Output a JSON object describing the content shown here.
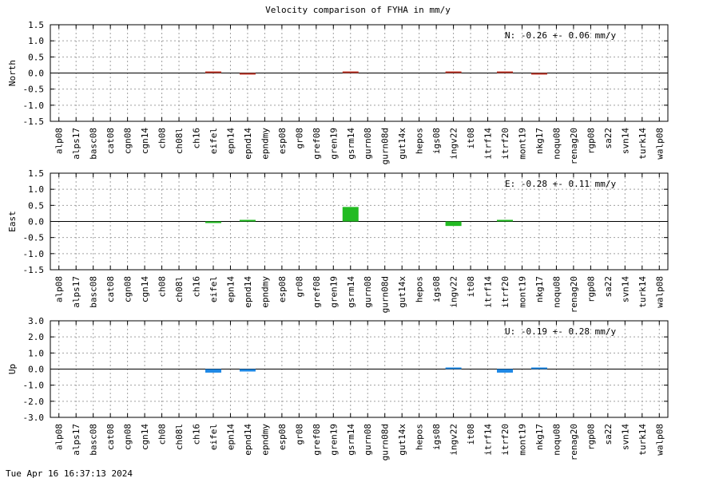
{
  "chart_data": {
    "type": "bar",
    "title": "Velocity comparison of FYHA in mm/y",
    "footer": "Tue Apr 16 16:37:13 2024",
    "categories": [
      "alp08",
      "alps17",
      "basc08",
      "cat08",
      "cgn08",
      "cgn14",
      "ch08",
      "ch08l",
      "ch16",
      "eifel",
      "epn14",
      "epnd14",
      "epndmy",
      "esp08",
      "gr08",
      "gref08",
      "gren19",
      "gsrm14",
      "gurn08",
      "gurn08d",
      "gut14x",
      "hepos",
      "igs08",
      "ingv22",
      "it08",
      "itrf14",
      "itrf20",
      "mont19",
      "nkg17",
      "noqu08",
      "renag20",
      "rgp08",
      "sa22",
      "svn14",
      "turk14",
      "walp08"
    ],
    "panels": [
      {
        "ylabel": "North",
        "color": "#c0392b",
        "ylim": [
          -1.5,
          1.5
        ],
        "yticks": [
          "1.5",
          "1.0",
          "0.5",
          "0.0",
          "-0.5",
          "-1.0",
          "-1.5"
        ],
        "annotation": "N:  -0.26 +-  0.06 mm/y",
        "values": [
          null,
          null,
          null,
          null,
          null,
          null,
          null,
          null,
          null,
          0.02,
          null,
          -0.04,
          null,
          null,
          null,
          null,
          null,
          0.04,
          null,
          null,
          null,
          null,
          null,
          0.02,
          null,
          null,
          0.02,
          null,
          -0.02,
          null,
          null,
          null,
          null,
          null,
          null,
          null
        ]
      },
      {
        "ylabel": "East",
        "color": "#22bb22",
        "ylim": [
          -1.5,
          1.5
        ],
        "yticks": [
          "1.5",
          "1.0",
          "0.5",
          "0.0",
          "-0.5",
          "-1.0",
          "-1.5"
        ],
        "annotation": "E:  -0.28 +-  0.11 mm/y",
        "values": [
          null,
          null,
          null,
          null,
          null,
          null,
          null,
          null,
          null,
          -0.02,
          null,
          0.02,
          null,
          null,
          null,
          null,
          null,
          0.45,
          null,
          null,
          null,
          null,
          null,
          -0.14,
          null,
          null,
          0.02,
          null,
          null,
          null,
          null,
          null,
          null,
          null,
          null,
          null
        ]
      },
      {
        "ylabel": "Up",
        "color": "#1e88e5",
        "ylim": [
          -3.0,
          3.0
        ],
        "yticks": [
          "3.0",
          "2.0",
          "1.0",
          "0.0",
          "-1.0",
          "-2.0",
          "-3.0"
        ],
        "annotation": "U:  -0.19 +-  0.28 mm/y",
        "values": [
          null,
          null,
          null,
          null,
          null,
          null,
          null,
          null,
          null,
          -0.22,
          null,
          -0.15,
          null,
          null,
          null,
          null,
          null,
          null,
          null,
          null,
          null,
          null,
          null,
          0.08,
          null,
          null,
          -0.22,
          null,
          0.04,
          null,
          null,
          null,
          null,
          null,
          null,
          null
        ]
      }
    ],
    "grid": true
  }
}
